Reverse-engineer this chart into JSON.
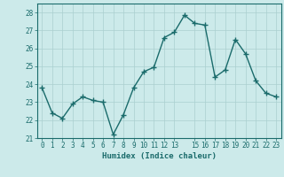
{
  "x": [
    0,
    1,
    2,
    3,
    4,
    5,
    6,
    7,
    8,
    9,
    10,
    11,
    12,
    13,
    14,
    15,
    16,
    17,
    18,
    19,
    20,
    21,
    22,
    23
  ],
  "y": [
    23.8,
    22.4,
    22.1,
    22.9,
    23.3,
    23.1,
    23.0,
    21.2,
    22.3,
    23.8,
    24.7,
    24.95,
    26.6,
    26.9,
    27.85,
    27.4,
    27.3,
    24.4,
    24.8,
    26.5,
    25.7,
    24.2,
    23.5,
    23.3
  ],
  "line_color": "#1a6b6b",
  "marker": "+",
  "marker_size": 4,
  "linewidth": 1.0,
  "bg_color": "#cceaea",
  "grid_color": "#aacfcf",
  "tick_color": "#1a6b6b",
  "xlabel": "Humidex (Indice chaleur)",
  "ylim": [
    21,
    28.5
  ],
  "xlim": [
    -0.5,
    23.5
  ],
  "yticks": [
    21,
    22,
    23,
    24,
    25,
    26,
    27,
    28
  ],
  "xticks": [
    0,
    1,
    2,
    3,
    4,
    5,
    6,
    7,
    8,
    9,
    10,
    11,
    12,
    13,
    15,
    16,
    17,
    18,
    19,
    20,
    21,
    22,
    23
  ],
  "xlabel_fontsize": 6.5,
  "tick_fontsize": 5.5
}
